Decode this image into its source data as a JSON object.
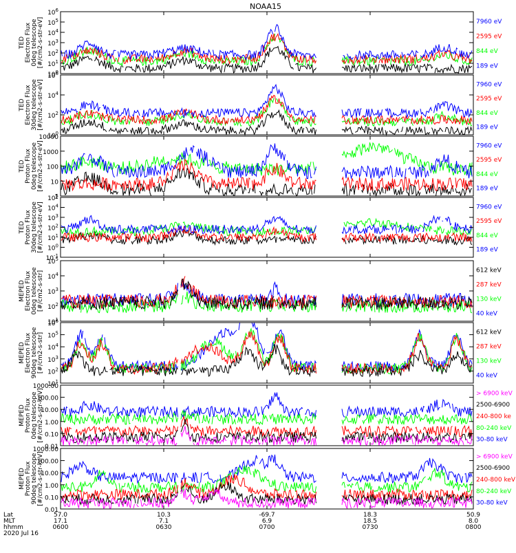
{
  "title": "NOAA15",
  "colors": {
    "black": "#000000",
    "red": "#ff0000",
    "green": "#00ff00",
    "blue": "#0000ff",
    "magenta": "#ff00ff"
  },
  "chart_data": [
    {
      "type": "line",
      "instrument": "TED",
      "species": "Electron Flux",
      "telescope": "0deg telescope",
      "units": "[#/cm2-s-str-eV]",
      "log": true,
      "ylim": [
        1,
        1000000
      ],
      "ticks": [
        {
          "v": 1,
          "t": "10^0"
        },
        {
          "v": 10,
          "t": "10^1"
        },
        {
          "v": 100,
          "t": "10^2"
        },
        {
          "v": 1000,
          "t": "10^3"
        },
        {
          "v": 10000,
          "t": "10^4"
        },
        {
          "v": 100000,
          "t": "10^5"
        },
        {
          "v": 1000000,
          "t": "10^6"
        }
      ],
      "series": [
        {
          "name": "7960 eV",
          "color": "blue"
        },
        {
          "name": "2595 eV",
          "color": "red"
        },
        {
          "name": "844 eV",
          "color": "green"
        },
        {
          "name": "189 eV",
          "color": "blue"
        }
      ]
    },
    {
      "type": "line",
      "instrument": "TED",
      "species": "Electron Flux",
      "telescope": "30deg telescope",
      "units": "[#/cm2-s-str-eV]",
      "log": true,
      "ylim": [
        1,
        1000000
      ],
      "ticks": [
        {
          "v": 1,
          "t": "10^0"
        },
        {
          "v": 100,
          "t": "10^2"
        },
        {
          "v": 10000,
          "t": "10^4"
        },
        {
          "v": 1000000,
          "t": "10^6"
        }
      ],
      "series": [
        {
          "name": "7960 eV",
          "color": "blue"
        },
        {
          "name": "2595 eV",
          "color": "red"
        },
        {
          "name": "844 eV",
          "color": "green"
        },
        {
          "name": "189 eV",
          "color": "blue"
        }
      ]
    },
    {
      "type": "line",
      "instrument": "TED",
      "species": "Proton Flux",
      "telescope": "0deg telescope",
      "units": "[#/cm2-s-str-eV]",
      "log": true,
      "ylim": [
        1,
        10000
      ],
      "ticks": [
        {
          "v": 1,
          "t": "1"
        },
        {
          "v": 10,
          "t": "10"
        },
        {
          "v": 100,
          "t": "100"
        },
        {
          "v": 1000,
          "t": "1000"
        },
        {
          "v": 10000,
          "t": "10000"
        }
      ],
      "series": [
        {
          "name": "7960 eV",
          "color": "blue"
        },
        {
          "name": "2595 eV",
          "color": "red"
        },
        {
          "name": "844 eV",
          "color": "green"
        },
        {
          "name": "189 eV",
          "color": "blue"
        }
      ]
    },
    {
      "type": "line",
      "instrument": "TED",
      "species": "Proton Flux",
      "telescope": "30deg telescope",
      "units": "[#/cm2-s-str-eV]",
      "log": true,
      "ylim": [
        0.1,
        100000
      ],
      "ticks": [
        {
          "v": 0.1,
          "t": "10^-1"
        },
        {
          "v": 1,
          "t": "10^0"
        },
        {
          "v": 10,
          "t": "10^1"
        },
        {
          "v": 100,
          "t": "10^2"
        },
        {
          "v": 1000,
          "t": "10^3"
        },
        {
          "v": 10000,
          "t": "10^4"
        },
        {
          "v": 100000,
          "t": "10^5"
        }
      ],
      "series": [
        {
          "name": "7960 eV",
          "color": "blue"
        },
        {
          "name": "2595 eV",
          "color": "red"
        },
        {
          "name": "844 eV",
          "color": "green"
        },
        {
          "name": "189 eV",
          "color": "blue"
        }
      ]
    },
    {
      "type": "line",
      "instrument": "MEPED",
      "species": "Electron Flux",
      "telescope": "0deg telescope",
      "units": "[#/cm2-s-str]",
      "log": true,
      "ylim": [
        10,
        100000
      ],
      "ticks": [
        {
          "v": 10,
          "t": "10^1"
        },
        {
          "v": 100,
          "t": "10^2"
        },
        {
          "v": 1000,
          "t": "10^3"
        },
        {
          "v": 10000,
          "t": "10^4"
        },
        {
          "v": 100000,
          "t": "10^5"
        }
      ],
      "series": [
        {
          "name": "612 keV",
          "color": "black"
        },
        {
          "name": "287 keV",
          "color": "red"
        },
        {
          "name": "130 keV",
          "color": "green"
        },
        {
          "name": "40 keV",
          "color": "blue"
        }
      ]
    },
    {
      "type": "line",
      "instrument": "MEPED",
      "species": "Electron Flux",
      "telescope": "90deg telescope",
      "units": "[#/cm2-s-str]",
      "log": true,
      "ylim": [
        10,
        1000000
      ],
      "ticks": [
        {
          "v": 10,
          "t": "10^1"
        },
        {
          "v": 100,
          "t": "10^2"
        },
        {
          "v": 1000,
          "t": "10^3"
        },
        {
          "v": 10000,
          "t": "10^4"
        },
        {
          "v": 100000,
          "t": "10^5"
        },
        {
          "v": 1000000,
          "t": "10^6"
        }
      ],
      "series": [
        {
          "name": "612 keV",
          "color": "black"
        },
        {
          "name": "287 keV",
          "color": "red"
        },
        {
          "name": "130 keV",
          "color": "green"
        },
        {
          "name": "40 keV",
          "color": "blue"
        }
      ]
    },
    {
      "type": "line",
      "instrument": "MEPED",
      "species": "Proton Flux",
      "telescope": "0deg telescope",
      "units": "[#/cm2-s-str-keV]",
      "log": true,
      "ylim": [
        0.01,
        1000
      ],
      "ticks": [
        {
          "v": 0.01,
          "t": "0.01"
        },
        {
          "v": 0.1,
          "t": "0.10"
        },
        {
          "v": 1,
          "t": "1.00"
        },
        {
          "v": 10,
          "t": "10.00"
        },
        {
          "v": 100,
          "t": "100.00"
        },
        {
          "v": 1000,
          "t": "1000.00"
        }
      ],
      "series": [
        {
          "name": "> 6900 keV",
          "color": "magenta"
        },
        {
          "name": "2500-6900",
          "color": "black"
        },
        {
          "name": "240-800 ke",
          "color": "red"
        },
        {
          "name": "80-240 keV",
          "color": "green"
        },
        {
          "name": "30-80 keV",
          "color": "blue"
        }
      ]
    },
    {
      "type": "line",
      "instrument": "MEPED",
      "species": "Proton Flux",
      "telescope": "90deg telescope",
      "units": "[#/cm2-s-str-keV]",
      "log": true,
      "ylim": [
        0.01,
        1000
      ],
      "ticks": [
        {
          "v": 0.01,
          "t": "0.01"
        },
        {
          "v": 0.1,
          "t": "0.10"
        },
        {
          "v": 1,
          "t": "1.00"
        },
        {
          "v": 10,
          "t": "10.00"
        },
        {
          "v": 100,
          "t": "100.00"
        },
        {
          "v": 1000,
          "t": "1000.00"
        }
      ],
      "series": [
        {
          "name": "> 6900 keV",
          "color": "magenta"
        },
        {
          "name": "2500-6900",
          "color": "black"
        },
        {
          "name": "240-800 keV",
          "color": "red"
        },
        {
          "name": "80-240 keV",
          "color": "green"
        },
        {
          "name": "30-80 keV",
          "color": "blue"
        }
      ]
    }
  ],
  "xaxis": {
    "row_labels": [
      "Lat",
      "MLT",
      "hhmm",
      "2020 Jul 16"
    ],
    "ticks": [
      {
        "lat": "57.0",
        "mlt": "17.1",
        "hhmm": "0600"
      },
      {
        "lat": "10.3",
        "mlt": "7.1",
        "hhmm": "0630"
      },
      {
        "lat": "-69.7",
        "mlt": "6.9",
        "hhmm": "0700"
      },
      {
        "lat": "18.3",
        "mlt": "18.5",
        "hhmm": "0730"
      },
      {
        "lat": "50.9",
        "mlt": "8.0",
        "hhmm": "0800"
      }
    ]
  }
}
